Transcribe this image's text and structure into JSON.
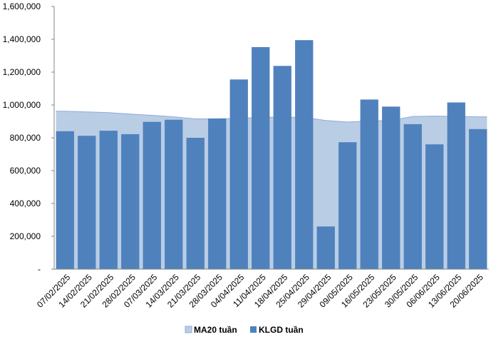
{
  "chart_data": {
    "type": "bar",
    "categories": [
      "07/02/2025",
      "14/02/2025",
      "21/02/2025",
      "28/02/2025",
      "07/03/2025",
      "14/03/2025",
      "21/03/2025",
      "28/03/2025",
      "04/04/2025",
      "11/04/2025",
      "18/04/2025",
      "25/04/2025",
      "29/04/2025",
      "09/05/2025",
      "16/05/2025",
      "23/05/2025",
      "30/05/2025",
      "06/06/2025",
      "13/06/2025",
      "20/06/2025"
    ],
    "series": [
      {
        "name": "MA20 tuần",
        "type": "area",
        "color": "#b9cde5",
        "values": [
          962000,
          958000,
          953000,
          945000,
          937000,
          928000,
          915000,
          915000,
          918000,
          925000,
          926000,
          924000,
          905000,
          896000,
          902000,
          906000,
          930000,
          932000,
          930000,
          928000
        ]
      },
      {
        "name": "KLGD tuần",
        "type": "bar",
        "color": "#4f81bd",
        "values": [
          840000,
          812000,
          843000,
          822000,
          897000,
          910000,
          800000,
          918000,
          1155000,
          1352000,
          1238000,
          1395000,
          260000,
          773000,
          1033000,
          990000,
          883000,
          760000,
          1015000,
          853000
        ]
      }
    ],
    "yticks": [
      "1,600,000",
      "1,400,000",
      "1,200,000",
      "1,000,000",
      "800,000",
      "600,000",
      "400,000",
      "200,000",
      "-"
    ],
    "ylim": [
      0,
      1600000
    ],
    "legend": "bottom",
    "grid": false
  }
}
